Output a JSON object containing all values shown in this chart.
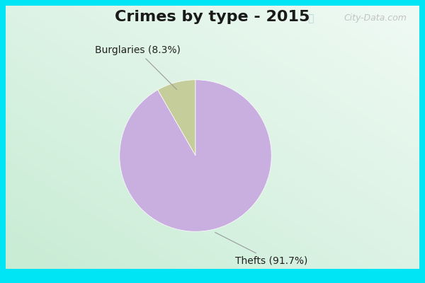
{
  "title": "Crimes by type - 2015",
  "slices": [
    8.3,
    91.7
  ],
  "labels": [
    "Burglaries (8.3%)",
    "Thefts (91.7%)"
  ],
  "colors": [
    "#c5cd9a",
    "#c9aee0"
  ],
  "bg_cyan": "#00e5f5",
  "bg_white": "#f0faf5",
  "bg_green": "#c8ecd4",
  "title_fontsize": 16,
  "label_fontsize": 10,
  "startangle": 90,
  "watermark": "City-Data.com"
}
